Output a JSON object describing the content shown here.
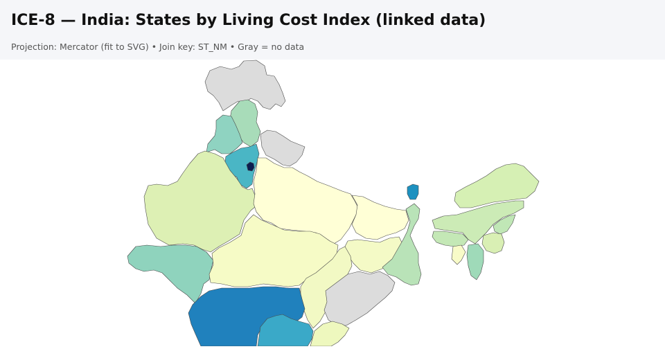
{
  "header": {
    "title": "ICE-8 — India: States by Living Cost Index (linked data)",
    "subtitle": "Projection: Mercator (fit to SVG) • Join key: ST_NM • Gray = no data"
  },
  "colors": {
    "no_data": "#dcdcdc",
    "scale": [
      "#ffffd9",
      "#edf8b1",
      "#d9efb2",
      "#c7e9b4",
      "#a8dcb9",
      "#8fd3c1",
      "#41b6c4",
      "#1d91c0",
      "#225ea8",
      "#081d58"
    ]
  },
  "map": {
    "states": [
      {
        "name": "Ladakh",
        "color": "#dcdcdc"
      },
      {
        "name": "Himachal Pradesh",
        "color": "#a8dcb9"
      },
      {
        "name": "Punjab",
        "color": "#8fd3c1"
      },
      {
        "name": "Uttarakhand",
        "color": "#dcdcdc"
      },
      {
        "name": "Haryana",
        "color": "#4ab6c5"
      },
      {
        "name": "Delhi",
        "color": "#0b1d4f"
      },
      {
        "name": "Rajasthan",
        "color": "#ddf0b4"
      },
      {
        "name": "Uttar Pradesh",
        "color": "#ffffd6"
      },
      {
        "name": "Gujarat",
        "color": "#8fd3bd"
      },
      {
        "name": "Madhya Pradesh",
        "color": "#f6fbc6"
      },
      {
        "name": "Bihar",
        "color": "#ffffd6"
      },
      {
        "name": "Jharkhand",
        "color": "#f4fac6"
      },
      {
        "name": "West Bengal",
        "color": "#b9e3b8"
      },
      {
        "name": "Sikkim",
        "color": "#1d91c0"
      },
      {
        "name": "Assam",
        "color": "#ccebb6"
      },
      {
        "name": "Arunachal Pradesh",
        "color": "#d6f0b4"
      },
      {
        "name": "Meghalaya",
        "color": "#c4e8b6"
      },
      {
        "name": "Nagaland",
        "color": "#c0e7b6"
      },
      {
        "name": "Manipur",
        "color": "#d9efb4"
      },
      {
        "name": "Mizoram",
        "color": "#9fdab9"
      },
      {
        "name": "Tripura",
        "color": "#f8fbc8"
      },
      {
        "name": "Chhattisgarh",
        "color": "#f2f9c4"
      },
      {
        "name": "Odisha",
        "color": "#dcdcdc"
      },
      {
        "name": "Maharashtra",
        "color": "#2081bd"
      },
      {
        "name": "Telangana",
        "color": "#3aa9c8"
      },
      {
        "name": "Andhra Pradesh",
        "color": "#eef8be"
      }
    ]
  }
}
